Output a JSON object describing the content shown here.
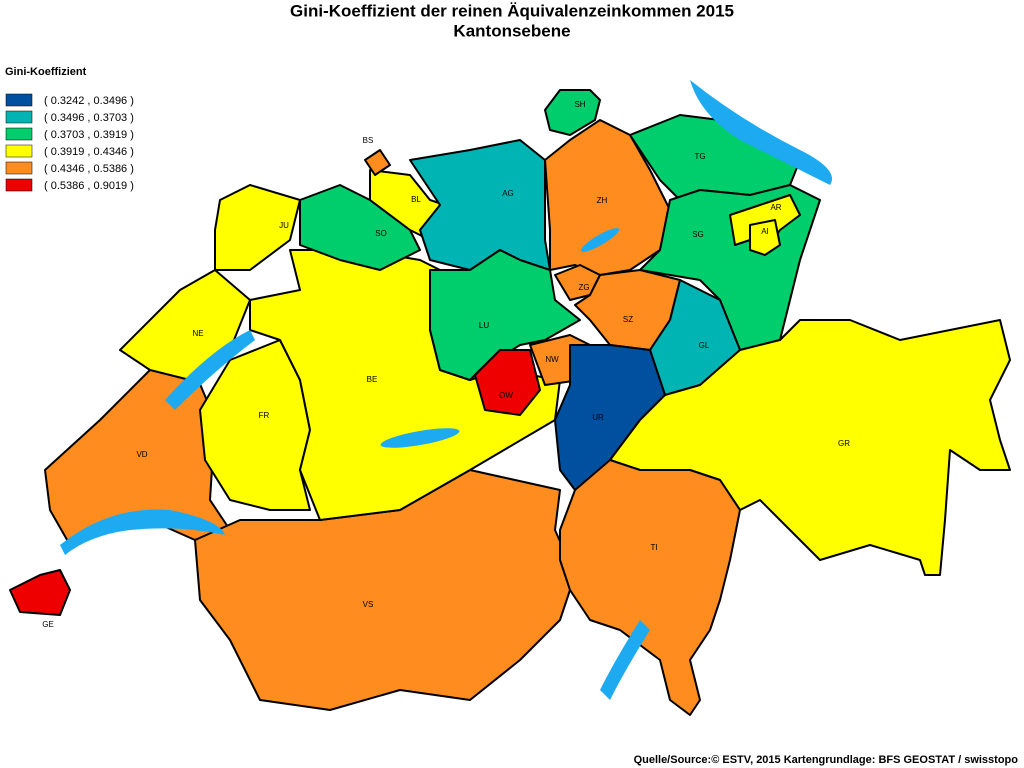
{
  "title": "Gini-Koeffizient der reinen Äquivalenzeinkommen 2015",
  "subtitle": "Kantonsebene",
  "legend": {
    "title": "Gini-Koeffizient",
    "items": [
      {
        "label": "( 0.3242 , 0.3496 )",
        "color": "#0050a0"
      },
      {
        "label": "( 0.3496 , 0.3703 )",
        "color": "#00b4b4"
      },
      {
        "label": "( 0.3703 , 0.3919 )",
        "color": "#00cd6c"
      },
      {
        "label": "( 0.3919 , 0.4346 )",
        "color": "#ffff00"
      },
      {
        "label": "( 0.4346 , 0.5386 )",
        "color": "#ff8c1e"
      },
      {
        "label": "( 0.5386 , 0.9019 )",
        "color": "#ee0000"
      }
    ]
  },
  "cantons": [
    {
      "label": "GE",
      "color": "#ee0000"
    },
    {
      "label": "VD",
      "color": "#ff8c1e"
    },
    {
      "label": "VS",
      "color": "#ff8c1e"
    },
    {
      "label": "FR",
      "color": "#ffff00"
    },
    {
      "label": "NE",
      "color": "#ffff00"
    },
    {
      "label": "JU",
      "color": "#ffff00"
    },
    {
      "label": "BE",
      "color": "#ffff00"
    },
    {
      "label": "SO",
      "color": "#00cd6c"
    },
    {
      "label": "BL",
      "color": "#ffff00"
    },
    {
      "label": "BS",
      "color": "#ff8c1e"
    },
    {
      "label": "AG",
      "color": "#00b4b4"
    },
    {
      "label": "ZH",
      "color": "#ff8c1e"
    },
    {
      "label": "SH",
      "color": "#00cd6c"
    },
    {
      "label": "TG",
      "color": "#00cd6c"
    },
    {
      "label": "SG",
      "color": "#00cd6c"
    },
    {
      "label": "AR",
      "color": "#ffff00"
    },
    {
      "label": "AI",
      "color": "#ffff00"
    },
    {
      "label": "ZG",
      "color": "#ff8c1e"
    },
    {
      "label": "SZ",
      "color": "#ff8c1e"
    },
    {
      "label": "GL",
      "color": "#00b4b4"
    },
    {
      "label": "LU",
      "color": "#00cd6c"
    },
    {
      "label": "OW",
      "color": "#ee0000"
    },
    {
      "label": "NW",
      "color": "#ff8c1e"
    },
    {
      "label": "UR",
      "color": "#0050a0"
    },
    {
      "label": "GR",
      "color": "#ffff00"
    },
    {
      "label": "TI",
      "color": "#ff8c1e"
    }
  ],
  "source": "Quelle/Source:© ESTV, 2015 Kartengrundlage: BFS GEOSTAT / swisstopo"
}
